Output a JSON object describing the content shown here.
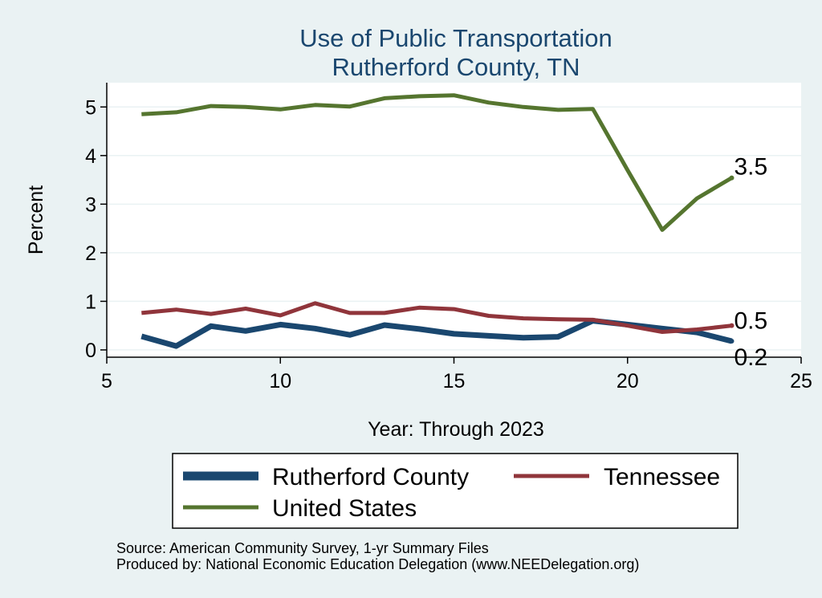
{
  "chart_data": {
    "type": "line",
    "title": "Use of Public Transportation",
    "subtitle": "Rutherford County, TN",
    "xlabel": "Year: Through 2023",
    "ylabel": "Percent",
    "xlim": [
      5,
      25
    ],
    "ylim": [
      -0.15,
      5.5
    ],
    "xticks": [
      5,
      10,
      15,
      20,
      25
    ],
    "yticks": [
      0,
      1,
      2,
      3,
      4,
      5
    ],
    "grid": true,
    "legend_position": "bottom",
    "series": [
      {
        "name": "Rutherford County",
        "color": "#1a476f",
        "x": [
          6,
          7,
          8,
          9,
          10,
          11,
          12,
          13,
          14,
          15,
          16,
          17,
          18,
          19,
          20,
          21,
          22,
          23
        ],
        "values": [
          0.28,
          0.08,
          0.49,
          0.39,
          0.52,
          0.44,
          0.31,
          0.51,
          0.43,
          0.33,
          0.29,
          0.25,
          0.27,
          0.6,
          0.52,
          0.44,
          0.36,
          0.18
        ],
        "end_label": "0.2"
      },
      {
        "name": "Tennessee",
        "color": "#90353b",
        "x": [
          6,
          7,
          8,
          9,
          10,
          11,
          12,
          13,
          14,
          15,
          16,
          17,
          18,
          19,
          20,
          21,
          22,
          23
        ],
        "values": [
          0.76,
          0.83,
          0.74,
          0.85,
          0.71,
          0.96,
          0.76,
          0.76,
          0.87,
          0.84,
          0.7,
          0.65,
          0.63,
          0.62,
          0.5,
          0.37,
          0.42,
          0.5
        ],
        "end_label": "0.5"
      },
      {
        "name": "United States",
        "color": "#55752f",
        "x": [
          6,
          7,
          8,
          9,
          10,
          11,
          12,
          13,
          14,
          15,
          16,
          17,
          18,
          19,
          20,
          21,
          22,
          23
        ],
        "values": [
          4.85,
          4.89,
          5.02,
          5.0,
          4.95,
          5.04,
          5.01,
          5.18,
          5.22,
          5.24,
          5.09,
          5.0,
          4.94,
          4.96,
          3.7,
          2.47,
          3.12,
          3.54
        ],
        "end_label": "3.5"
      }
    ],
    "notes": [
      "Source: American Community Survey, 1-yr Summary Files",
      "Produced by: National Economic Education Delegation (www.NEEDelegation.org)"
    ]
  }
}
